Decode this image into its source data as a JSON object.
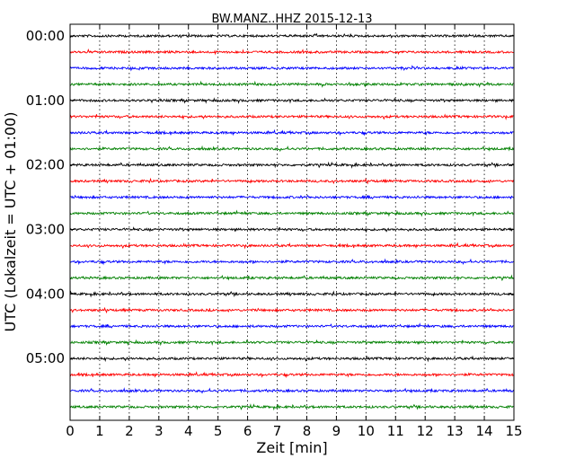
{
  "chart_data": {
    "type": "line",
    "title": "BW.MANZ..HHZ 2015-12-13",
    "xlabel": "Zeit  [min]",
    "ylabel": "UTC (Lokalzeit = UTC + 01:00)",
    "xlim": [
      0,
      15
    ],
    "x_ticks": [
      "0",
      "1",
      "2",
      "3",
      "4",
      "5",
      "6",
      "7",
      "8",
      "9",
      "10",
      "11",
      "12",
      "13",
      "14",
      "15"
    ],
    "y_tick_labels": [
      "00:00",
      "01:00",
      "02:00",
      "03:00",
      "04:00",
      "05:00"
    ],
    "y_tick_positions_hours": [
      0,
      1,
      2,
      3,
      4,
      5
    ],
    "trace_interval_minutes": 15,
    "trace_count": 24,
    "color_cycle": [
      "#000000",
      "#ff0000",
      "#0000ff",
      "#008000"
    ],
    "grid": "vertical-dotted",
    "legend": "none",
    "series": [
      {
        "start": "00:00",
        "color": "#000000"
      },
      {
        "start": "00:15",
        "color": "#ff0000"
      },
      {
        "start": "00:30",
        "color": "#0000ff"
      },
      {
        "start": "00:45",
        "color": "#008000"
      },
      {
        "start": "01:00",
        "color": "#000000"
      },
      {
        "start": "01:15",
        "color": "#ff0000"
      },
      {
        "start": "01:30",
        "color": "#0000ff"
      },
      {
        "start": "01:45",
        "color": "#008000"
      },
      {
        "start": "02:00",
        "color": "#000000"
      },
      {
        "start": "02:15",
        "color": "#ff0000"
      },
      {
        "start": "02:30",
        "color": "#0000ff"
      },
      {
        "start": "02:45",
        "color": "#008000"
      },
      {
        "start": "03:00",
        "color": "#000000"
      },
      {
        "start": "03:15",
        "color": "#ff0000"
      },
      {
        "start": "03:30",
        "color": "#0000ff"
      },
      {
        "start": "03:45",
        "color": "#008000"
      },
      {
        "start": "04:00",
        "color": "#000000"
      },
      {
        "start": "04:15",
        "color": "#ff0000"
      },
      {
        "start": "04:30",
        "color": "#0000ff"
      },
      {
        "start": "04:45",
        "color": "#008000"
      },
      {
        "start": "05:00",
        "color": "#000000"
      },
      {
        "start": "05:15",
        "color": "#ff0000"
      },
      {
        "start": "05:30",
        "color": "#0000ff"
      },
      {
        "start": "05:45",
        "color": "#008000"
      }
    ]
  }
}
